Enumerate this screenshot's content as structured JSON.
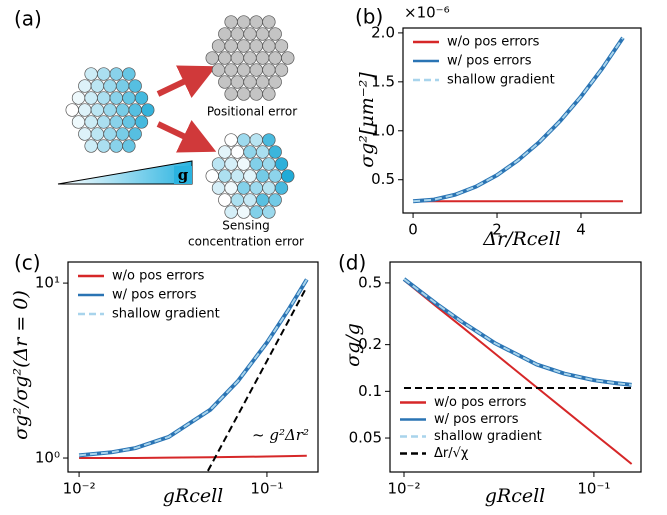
{
  "diagram": {
    "panel_label": "(a)",
    "positional_label": "Positional error",
    "sensing_label": [
      "Sensing",
      "concentration error"
    ],
    "gradient_label": "g"
  },
  "chart_data": [
    {
      "type": "line",
      "panel_label": "(b)",
      "xlabel": "Δr/Rcell",
      "ylabel": "σg²[μm⁻²]",
      "y_offset_label": "×10⁻⁶",
      "x": [
        0,
        0.5,
        1,
        1.5,
        2,
        2.5,
        3,
        3.5,
        4,
        4.5,
        5
      ],
      "series": [
        {
          "name": "w/o pos errors",
          "color": "#d62728",
          "linestyle": "solid",
          "values": [
            0.28,
            0.28,
            0.28,
            0.28,
            0.28,
            0.28,
            0.28,
            0.28,
            0.28,
            0.28,
            0.28
          ]
        },
        {
          "name": "w/ pos errors",
          "color": "#2a74b4",
          "linestyle": "solid",
          "values": [
            0.28,
            0.297,
            0.347,
            0.43,
            0.547,
            0.698,
            0.881,
            1.098,
            1.349,
            1.633,
            1.95
          ]
        },
        {
          "name": "shallow gradient",
          "color": "#a8d4ec",
          "linestyle": "dashed",
          "values": [
            0.28,
            0.297,
            0.347,
            0.43,
            0.547,
            0.698,
            0.881,
            1.098,
            1.349,
            1.633,
            1.95
          ]
        }
      ],
      "xlim": [
        -0.24,
        5.43
      ],
      "ylim": [
        0.16,
        2.05
      ],
      "xticks": [
        0,
        2,
        4
      ],
      "yticks": [
        0.5,
        {
          "value": 1,
          "label": "1.0"
        },
        1.5,
        {
          "value": 2,
          "label": "2.0"
        }
      ],
      "legend": "upper left"
    },
    {
      "type": "line",
      "panel_label": "(c)",
      "xlabel": "gRcell",
      "ylabel": "σg²/σg²(Δr = 0)",
      "annotation": "~ g²Δr²",
      "xscale": "log",
      "yscale": "log",
      "x": [
        0.01,
        0.015,
        0.02,
        0.03,
        0.05,
        0.07,
        0.1,
        0.13,
        0.163
      ],
      "series": [
        {
          "name": "w/o pos errors",
          "color": "#d62728",
          "linestyle": "solid",
          "values": [
            1.0,
            1.0,
            1.0,
            1.005,
            1.01,
            1.015,
            1.02,
            1.025,
            1.03
          ]
        },
        {
          "name": "w/ pos errors",
          "color": "#2a74b4",
          "linestyle": "solid",
          "values": [
            1.036,
            1.08,
            1.14,
            1.32,
            1.89,
            2.75,
            4.57,
            7.03,
            10.49
          ]
        },
        {
          "name": "shallow gradient",
          "color": "#a8d4ec",
          "linestyle": "dashed",
          "values": [
            1.036,
            1.08,
            1.14,
            1.32,
            1.89,
            2.75,
            4.57,
            7.03,
            10.49
          ]
        },
        {
          "color": "#000000",
          "linestyle": "dashed",
          "x": [
            0.0485,
            0.163
          ],
          "values": [
            0.844,
            9.53
          ]
        }
      ],
      "xlim": [
        0.00873,
        0.187
      ],
      "ylim": [
        0.832,
        13.2
      ],
      "xticks": [
        {
          "value": 0.01,
          "label": "10⁻²"
        },
        {
          "value": 0.1,
          "label": "10⁻¹"
        }
      ],
      "yticks": [
        {
          "value": 1,
          "label": "10⁰"
        },
        {
          "value": 10,
          "label": "10¹"
        }
      ],
      "legend": "upper left"
    },
    {
      "type": "line",
      "panel_label": "(d)",
      "xlabel": "gRcell",
      "ylabel": "σg/g",
      "xscale": "log",
      "yscale": "log",
      "x": [
        0.01,
        0.015,
        0.02,
        0.03,
        0.05,
        0.07,
        0.1,
        0.13,
        0.158
      ],
      "series": [
        {
          "name": "w/o pos errors",
          "color": "#d62728",
          "linestyle": "solid",
          "values": [
            0.52,
            0.348,
            0.263,
            0.176,
            0.106,
            0.076,
            0.0534,
            0.0413,
            0.034
          ]
        },
        {
          "name": "w/ pos errors",
          "color": "#2a74b4",
          "linestyle": "solid",
          "values": [
            0.53,
            0.363,
            0.283,
            0.205,
            0.149,
            0.13,
            0.118,
            0.113,
            0.11
          ]
        },
        {
          "name": "shallow gradient",
          "color": "#a8d4ec",
          "linestyle": "dashed",
          "values": [
            0.53,
            0.363,
            0.283,
            0.205,
            0.149,
            0.13,
            0.118,
            0.113,
            0.11
          ]
        },
        {
          "name": "Δr/√χ",
          "color": "#000000",
          "linestyle": "dashed",
          "x": [
            0.01,
            0.158
          ],
          "values": [
            0.105,
            0.105
          ]
        }
      ],
      "xlim": [
        0.00844,
        0.177
      ],
      "ylim": [
        0.0302,
        0.682
      ],
      "xticks": [
        {
          "value": 0.01,
          "label": "10⁻²"
        },
        {
          "value": 0.1,
          "label": "10⁻¹"
        }
      ],
      "yticks": [
        0.05,
        0.1,
        0.2,
        0.5
      ],
      "legend": "lower left"
    }
  ]
}
